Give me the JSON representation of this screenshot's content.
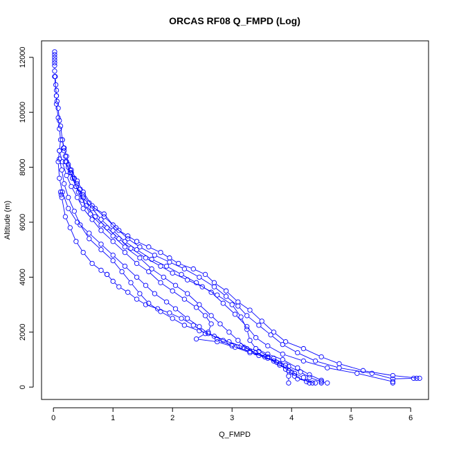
{
  "chart_data": {
    "type": "line",
    "title": "ORCAS RF08 Q_FMPD (Log)",
    "xlabel": "Q_FMPD",
    "ylabel": "Altitude (m)",
    "xlim": [
      -0.2,
      6.3
    ],
    "ylim": [
      -450,
      12600
    ],
    "xticks": [
      0,
      1,
      2,
      3,
      4,
      5,
      6
    ],
    "yticks": [
      0,
      2000,
      4000,
      6000,
      8000,
      10000,
      12000
    ],
    "grid": false,
    "line_color": "#0000ff",
    "series": [
      {
        "values": [
          [
            0.02,
            12200
          ],
          [
            0.02,
            12100
          ],
          [
            0.02,
            12000
          ],
          [
            0.02,
            11900
          ],
          [
            0.02,
            11800
          ],
          [
            0.02,
            11700
          ],
          [
            0.02,
            11500
          ],
          [
            0.03,
            11300
          ],
          [
            0.04,
            11000
          ],
          [
            0.05,
            10800
          ],
          [
            0.05,
            10600
          ],
          [
            0.06,
            10400
          ],
          [
            0.08,
            10150
          ],
          [
            0.1,
            9700
          ],
          [
            0.12,
            9500
          ],
          [
            0.15,
            9000
          ],
          [
            0.17,
            8700
          ],
          [
            0.18,
            8600
          ],
          [
            0.2,
            8400
          ],
          [
            0.22,
            8200
          ],
          [
            0.25,
            8100
          ],
          [
            0.28,
            7900
          ],
          [
            0.3,
            7800
          ],
          [
            0.35,
            7600
          ],
          [
            0.4,
            7400
          ],
          [
            0.45,
            7200
          ],
          [
            0.5,
            7000
          ],
          [
            0.6,
            6700
          ],
          [
            0.7,
            6500
          ],
          [
            0.85,
            6300
          ],
          [
            1.0,
            5900
          ],
          [
            1.1,
            5700
          ],
          [
            1.25,
            5500
          ],
          [
            1.4,
            5300
          ],
          [
            1.6,
            5100
          ],
          [
            1.8,
            4900
          ],
          [
            1.95,
            4700
          ],
          [
            2.1,
            4500
          ],
          [
            2.35,
            4300
          ],
          [
            2.55,
            4100
          ],
          [
            2.7,
            3800
          ],
          [
            2.9,
            3500
          ],
          [
            3.1,
            3100
          ],
          [
            3.3,
            2800
          ],
          [
            3.5,
            2400
          ],
          [
            3.7,
            2000
          ],
          [
            3.9,
            1650
          ],
          [
            4.2,
            1400
          ],
          [
            4.5,
            1100
          ],
          [
            4.8,
            850
          ],
          [
            5.2,
            600
          ],
          [
            5.7,
            420
          ],
          [
            6.15,
            320
          ]
        ]
      },
      {
        "values": [
          [
            0.15,
            9000
          ],
          [
            0.18,
            8700
          ],
          [
            0.22,
            8400
          ],
          [
            0.3,
            7900
          ],
          [
            0.4,
            7500
          ],
          [
            0.5,
            7100
          ],
          [
            0.65,
            6600
          ],
          [
            0.85,
            6200
          ],
          [
            1.05,
            5800
          ],
          [
            1.25,
            5400
          ],
          [
            1.45,
            5100
          ],
          [
            1.7,
            4800
          ],
          [
            1.95,
            4550
          ],
          [
            2.2,
            4300
          ],
          [
            2.45,
            4000
          ],
          [
            2.7,
            3650
          ],
          [
            2.9,
            3300
          ],
          [
            3.1,
            2950
          ],
          [
            3.25,
            2600
          ],
          [
            3.45,
            2250
          ],
          [
            3.65,
            1900
          ],
          [
            3.85,
            1550
          ],
          [
            4.1,
            1250
          ],
          [
            4.4,
            950
          ],
          [
            4.8,
            700
          ],
          [
            5.35,
            500
          ],
          [
            5.7,
            300
          ],
          [
            6.05,
            320
          ],
          [
            6.1,
            320
          ]
        ]
      },
      {
        "values": [
          [
            0.2,
            8200
          ],
          [
            0.28,
            7800
          ],
          [
            0.38,
            7300
          ],
          [
            0.5,
            6900
          ],
          [
            0.65,
            6500
          ],
          [
            0.8,
            6100
          ],
          [
            1.0,
            5700
          ],
          [
            1.2,
            5300
          ],
          [
            1.4,
            5000
          ],
          [
            1.65,
            4650
          ],
          [
            1.9,
            4400
          ],
          [
            2.15,
            4100
          ],
          [
            2.4,
            3800
          ],
          [
            2.65,
            3450
          ],
          [
            2.85,
            3050
          ],
          [
            3.05,
            2650
          ],
          [
            3.25,
            2200
          ],
          [
            3.4,
            1800
          ],
          [
            3.6,
            1500
          ],
          [
            3.85,
            1200
          ],
          [
            4.2,
            950
          ],
          [
            4.6,
            700
          ],
          [
            5.1,
            500
          ],
          [
            5.7,
            200
          ],
          [
            5.7,
            150
          ]
        ]
      },
      {
        "values": [
          [
            0.25,
            8000
          ],
          [
            0.32,
            7600
          ],
          [
            0.42,
            7100
          ],
          [
            0.55,
            6600
          ],
          [
            0.7,
            6200
          ],
          [
            0.9,
            5800
          ],
          [
            1.1,
            5400
          ],
          [
            1.3,
            5050
          ],
          [
            1.55,
            4700
          ],
          [
            1.8,
            4400
          ],
          [
            2.0,
            4150
          ],
          [
            2.25,
            3900
          ],
          [
            2.5,
            3650
          ],
          [
            2.75,
            3350
          ],
          [
            3.0,
            3000
          ],
          [
            3.15,
            2550
          ],
          [
            3.25,
            2100
          ],
          [
            3.3,
            1700
          ],
          [
            3.4,
            1400
          ],
          [
            3.6,
            1200
          ],
          [
            3.85,
            1000
          ],
          [
            4.1,
            700
          ],
          [
            4.3,
            450
          ],
          [
            4.5,
            250
          ],
          [
            4.5,
            150
          ]
        ]
      },
      {
        "values": [
          [
            0.3,
            7800
          ],
          [
            0.38,
            7300
          ],
          [
            0.48,
            6800
          ],
          [
            0.62,
            6300
          ],
          [
            0.8,
            5900
          ],
          [
            1.0,
            5500
          ],
          [
            1.2,
            5100
          ],
          [
            1.45,
            4700
          ],
          [
            1.65,
            4300
          ],
          [
            1.85,
            4000
          ],
          [
            2.05,
            3700
          ],
          [
            2.25,
            3400
          ],
          [
            2.45,
            3000
          ],
          [
            2.65,
            2600
          ],
          [
            2.8,
            2300
          ],
          [
            2.95,
            2000
          ],
          [
            3.1,
            1700
          ],
          [
            3.25,
            1400
          ],
          [
            3.45,
            1150
          ],
          [
            3.7,
            950
          ],
          [
            3.95,
            750
          ],
          [
            4.15,
            550
          ],
          [
            4.3,
            350
          ],
          [
            4.5,
            200
          ],
          [
            4.6,
            150
          ]
        ]
      },
      {
        "values": [
          [
            0.1,
            8600
          ],
          [
            0.15,
            8200
          ],
          [
            0.22,
            7700
          ],
          [
            0.3,
            7300
          ],
          [
            0.4,
            6900
          ],
          [
            0.5,
            6500
          ],
          [
            0.65,
            6100
          ],
          [
            0.8,
            5700
          ],
          [
            1.0,
            5300
          ],
          [
            1.2,
            4900
          ],
          [
            1.4,
            4500
          ],
          [
            1.6,
            4200
          ],
          [
            1.8,
            3800
          ],
          [
            2.0,
            3500
          ],
          [
            2.2,
            3200
          ],
          [
            2.4,
            2900
          ],
          [
            2.55,
            2600
          ],
          [
            2.65,
            2300
          ],
          [
            2.6,
            2000
          ],
          [
            2.75,
            1750
          ],
          [
            3.0,
            1500
          ],
          [
            3.3,
            1300
          ],
          [
            3.6,
            1100
          ],
          [
            3.8,
            850
          ],
          [
            3.95,
            600
          ],
          [
            4.05,
            400
          ],
          [
            4.25,
            200
          ],
          [
            4.35,
            150
          ]
        ]
      },
      {
        "values": [
          [
            0.1,
            8300
          ],
          [
            0.14,
            7900
          ],
          [
            0.18,
            7400
          ],
          [
            0.25,
            6900
          ],
          [
            0.35,
            6400
          ],
          [
            0.45,
            5900
          ],
          [
            0.6,
            5400
          ],
          [
            0.8,
            5000
          ],
          [
            1.0,
            4600
          ],
          [
            1.15,
            4200
          ],
          [
            1.3,
            3800
          ],
          [
            1.45,
            3400
          ],
          [
            1.6,
            3050
          ],
          [
            1.8,
            2750
          ],
          [
            2.0,
            2500
          ],
          [
            2.2,
            2250
          ],
          [
            2.45,
            2050
          ],
          [
            2.7,
            1850
          ],
          [
            2.95,
            1650
          ],
          [
            3.2,
            1450
          ],
          [
            3.4,
            1250
          ],
          [
            3.6,
            1050
          ],
          [
            3.8,
            800
          ],
          [
            4.0,
            550
          ],
          [
            4.2,
            350
          ],
          [
            4.3,
            150
          ]
        ]
      },
      {
        "values": [
          [
            0.12,
            7100
          ],
          [
            0.13,
            7000
          ],
          [
            0.14,
            6900
          ],
          [
            0.2,
            6200
          ],
          [
            0.28,
            5800
          ],
          [
            0.38,
            5300
          ],
          [
            0.5,
            4900
          ],
          [
            0.65,
            4500
          ],
          [
            0.8,
            4250
          ],
          [
            0.9,
            4100
          ],
          [
            0.9,
            4100
          ],
          [
            1.0,
            3850
          ],
          [
            1.1,
            3650
          ],
          [
            1.25,
            3450
          ],
          [
            1.4,
            3200
          ],
          [
            1.55,
            3000
          ],
          [
            1.75,
            2850
          ],
          [
            1.95,
            2700
          ],
          [
            2.15,
            2500
          ],
          [
            2.35,
            2250
          ],
          [
            2.55,
            1950
          ],
          [
            2.4,
            1750
          ],
          [
            2.75,
            1650
          ],
          [
            3.05,
            1450
          ],
          [
            3.3,
            1250
          ],
          [
            3.55,
            1100
          ],
          [
            3.75,
            900
          ],
          [
            3.9,
            650
          ],
          [
            3.95,
            400
          ],
          [
            3.95,
            150
          ]
        ]
      },
      {
        "values": [
          [
            0.02,
            11300
          ],
          [
            0.05,
            10600
          ],
          [
            0.05,
            10300
          ],
          [
            0.08,
            9800
          ],
          [
            0.1,
            9400
          ],
          [
            0.12,
            9000
          ],
          [
            0.1,
            8600
          ],
          [
            0.08,
            8200
          ],
          [
            0.1,
            7600
          ],
          [
            0.15,
            7100
          ],
          [
            0.25,
            6500
          ],
          [
            0.4,
            6000
          ],
          [
            0.6,
            5600
          ],
          [
            0.8,
            5200
          ],
          [
            1.0,
            4800
          ],
          [
            1.2,
            4400
          ],
          [
            1.4,
            4000
          ],
          [
            1.55,
            3700
          ],
          [
            1.7,
            3400
          ],
          [
            1.9,
            3100
          ],
          [
            2.05,
            2850
          ],
          [
            2.25,
            2500
          ],
          [
            2.45,
            2200
          ],
          [
            2.6,
            1950
          ],
          [
            2.85,
            1700
          ],
          [
            3.15,
            1500
          ],
          [
            3.45,
            1300
          ],
          [
            3.7,
            1050
          ],
          [
            3.9,
            800
          ],
          [
            4.05,
            500
          ],
          [
            4.1,
            300
          ],
          [
            4.4,
            150
          ]
        ]
      }
    ]
  }
}
